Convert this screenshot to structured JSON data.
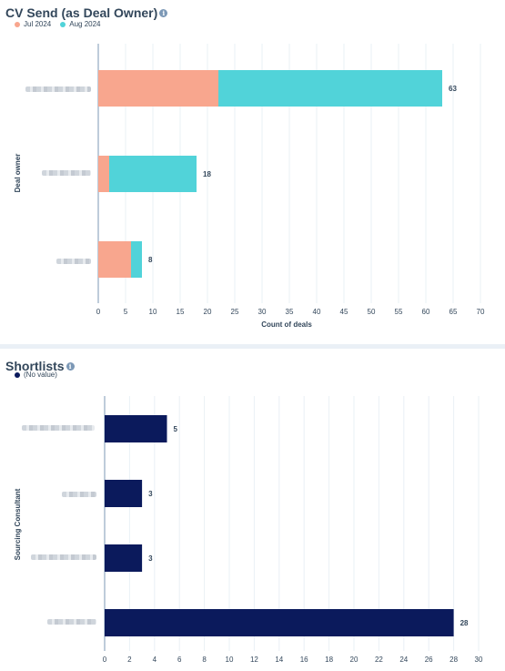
{
  "chart_data": [
    {
      "type": "bar",
      "orientation": "horizontal",
      "stacked": true,
      "title": "CV Send (as Deal Owner)",
      "xlabel": "Count of deals",
      "ylabel": "Deal owner",
      "categories": [
        "",
        "",
        ""
      ],
      "series": [
        {
          "name": "Jul 2024",
          "color": "#f8a68e",
          "values": [
            22,
            2,
            6
          ]
        },
        {
          "name": "Aug 2024",
          "color": "#51d3d9",
          "values": [
            41,
            16,
            2
          ]
        }
      ],
      "totals": [
        "63",
        "18",
        "8"
      ],
      "xlim": [
        0,
        70
      ],
      "xticks": [
        "0",
        "5",
        "10",
        "15",
        "20",
        "25",
        "30",
        "35",
        "40",
        "45",
        "50",
        "55",
        "60",
        "65",
        "70"
      ],
      "grid": true,
      "legend": "top-left"
    },
    {
      "type": "bar",
      "orientation": "horizontal",
      "stacked": false,
      "title": "Shortlists",
      "xlabel": "",
      "ylabel": "Sourcing Consultant",
      "categories": [
        "",
        "",
        "",
        ""
      ],
      "series": [
        {
          "name": "(No value)",
          "color": "#0b1a5c",
          "values": [
            5,
            3,
            3,
            28
          ]
        }
      ],
      "totals": [
        "5",
        "3",
        "3",
        "28"
      ],
      "xlim": [
        0,
        30
      ],
      "xticks": [
        "0",
        "2",
        "4",
        "6",
        "8",
        "10",
        "12",
        "14",
        "16",
        "18",
        "20",
        "22",
        "24",
        "26",
        "28",
        "30"
      ],
      "grid": true,
      "legend": "top-left"
    }
  ],
  "colors": {
    "axis": "#7c98b6",
    "grid": "#eaf0f6",
    "text": "#33475b"
  }
}
